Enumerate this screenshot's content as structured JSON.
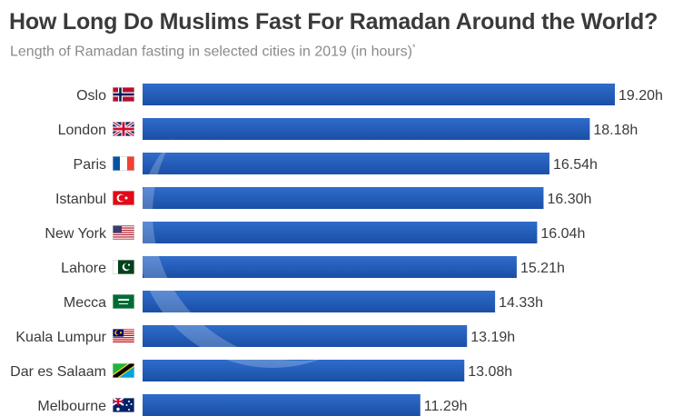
{
  "title": "How Long Do Muslims Fast For Ramadan Around the World?",
  "subtitle": "Length of Ramadan fasting in selected cities in 2019 (in hours)",
  "subtitle_mark": "*",
  "colors": {
    "bar": "#1f57b3",
    "bar_light": "#3f7bd3",
    "crescent": "#d9e6f6",
    "text": "#3a3a3a"
  },
  "chart_data": {
    "type": "bar",
    "orientation": "horizontal",
    "title": "How Long Do Muslims Fast For Ramadan Around the World?",
    "subtitle": "Length of Ramadan fasting in selected cities in 2019 (in hours)",
    "categories": [
      "Oslo",
      "London",
      "Paris",
      "Istanbul",
      "New York",
      "Lahore",
      "Mecca",
      "Kuala Lumpur",
      "Dar es Salaam",
      "Melbourne"
    ],
    "values": [
      19.2,
      18.18,
      16.54,
      16.3,
      16.04,
      15.21,
      14.33,
      13.19,
      13.08,
      11.29
    ],
    "labels": [
      "19.20h",
      "18.18h",
      "16.54h",
      "16.30h",
      "16.04h",
      "15.21h",
      "14.33h",
      "13.19h",
      "13.08h",
      "11.29h"
    ],
    "flag_icons": [
      "norway-flag-icon",
      "uk-flag-icon",
      "france-flag-icon",
      "turkey-flag-icon",
      "usa-flag-icon",
      "pakistan-flag-icon",
      "saudi-arabia-flag-icon",
      "malaysia-flag-icon",
      "tanzania-flag-icon",
      "australia-flag-icon"
    ],
    "xlim": [
      0,
      19.2
    ],
    "grid": false,
    "legend": "none"
  }
}
